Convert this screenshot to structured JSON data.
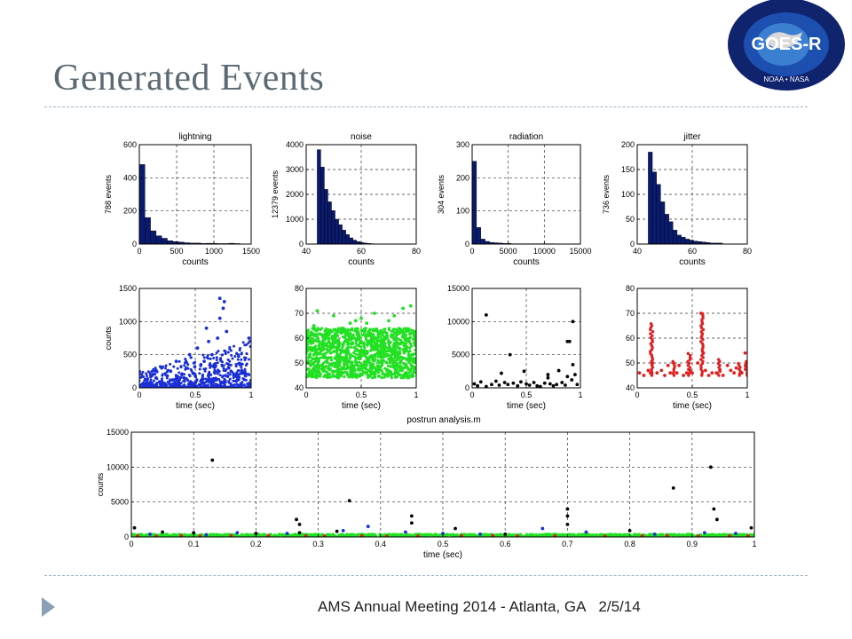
{
  "slide": {
    "title": "Generated Events",
    "footer_event": "AMS Annual Meeting 2014 - Atlanta, GA",
    "footer_date": "2/5/14",
    "figure_caption": "postrun analysis.m",
    "logo_text": "GOES-R",
    "logo_subtext": "NOAA • NASA"
  },
  "chart_data": [
    {
      "type": "bar",
      "title": "lightning",
      "xlabel": "counts",
      "ylabel": "788 events",
      "xlim": [
        0,
        1500
      ],
      "ylim": [
        0,
        600
      ],
      "xticks": [
        0,
        500,
        1000,
        1500
      ],
      "yticks": [
        0,
        200,
        400,
        600
      ],
      "bin_edges": [
        0,
        75,
        150,
        225,
        300,
        375,
        450,
        525,
        600,
        675,
        750,
        825,
        900,
        975,
        1050,
        1125,
        1200,
        1275,
        1350
      ],
      "values": [
        480,
        160,
        80,
        50,
        35,
        20,
        15,
        12,
        8,
        6,
        6,
        4,
        5,
        4,
        3,
        3,
        5,
        3
      ],
      "color": "#0a1a6e",
      "grid": true
    },
    {
      "type": "bar",
      "title": "noise",
      "xlabel": "counts",
      "ylabel": "12379 events",
      "xlim": [
        40,
        80
      ],
      "ylim": [
        0,
        4000
      ],
      "xticks": [
        40,
        60,
        80
      ],
      "yticks": [
        0,
        1000,
        2000,
        3000,
        4000
      ],
      "bin_edges": [
        44,
        45.3,
        46.6,
        47.9,
        49.2,
        50.5,
        51.8,
        53.1,
        54.4,
        55.7,
        57,
        58.3,
        59.6,
        60.9,
        62.2,
        63.5,
        64.8,
        66.1,
        67.4
      ],
      "values": [
        3800,
        3100,
        2200,
        1700,
        1350,
        1000,
        780,
        560,
        380,
        250,
        160,
        100,
        60,
        40,
        25,
        15,
        10,
        5
      ],
      "color": "#0a1a6e",
      "grid": true
    },
    {
      "type": "bar",
      "title": "radiation",
      "xlabel": "counts",
      "ylabel": "304 events",
      "xlim": [
        0,
        15000
      ],
      "ylim": [
        0,
        300
      ],
      "xticks": [
        0,
        5000,
        10000,
        15000
      ],
      "yticks": [
        0,
        100,
        200,
        300
      ],
      "bin_edges": [
        0,
        600,
        1200,
        1800,
        2400,
        3000,
        3600,
        4200,
        4800,
        5400,
        6000,
        6600,
        7200,
        7800,
        8400,
        9000,
        9600,
        10200,
        10800,
        11400
      ],
      "values": [
        250,
        50,
        15,
        8,
        5,
        4,
        3,
        2,
        2,
        1,
        1,
        1,
        1,
        1,
        1,
        1,
        1,
        1,
        1
      ],
      "color": "#0a1a6e",
      "grid": true
    },
    {
      "type": "bar",
      "title": "jitter",
      "xlabel": "counts",
      "ylabel": "736 events",
      "xlim": [
        40,
        80
      ],
      "ylim": [
        0,
        200
      ],
      "xticks": [
        40,
        60,
        80
      ],
      "yticks": [
        0,
        50,
        100,
        150,
        200
      ],
      "bin_edges": [
        44,
        45.5,
        47,
        48.5,
        50,
        51.5,
        53,
        54.5,
        56,
        57.5,
        59,
        60.5,
        62,
        63.5,
        65,
        66.5,
        68,
        69.5,
        71
      ],
      "values": [
        185,
        145,
        120,
        85,
        60,
        45,
        28,
        18,
        14,
        10,
        8,
        6,
        5,
        4,
        3,
        2,
        2,
        2
      ],
      "color": "#0a1a6e",
      "grid": true
    },
    {
      "type": "scatter",
      "xlabel": "time (sec)",
      "ylabel": "counts",
      "xlim": [
        0,
        1
      ],
      "ylim": [
        0,
        1500
      ],
      "xticks": [
        0,
        0.5,
        1
      ],
      "yticks": [
        0,
        500,
        1000,
        1500
      ],
      "x": [
        0.03,
        0.07,
        0.1,
        0.12,
        0.15,
        0.18,
        0.2,
        0.22,
        0.25,
        0.28,
        0.3,
        0.33,
        0.35,
        0.38,
        0.4,
        0.42,
        0.45,
        0.48,
        0.5,
        0.52,
        0.55,
        0.58,
        0.6,
        0.62,
        0.65,
        0.67,
        0.7,
        0.72,
        0.75,
        0.78,
        0.8,
        0.82,
        0.85,
        0.88,
        0.9,
        0.93,
        0.95,
        0.98,
        0.15,
        0.35,
        0.55,
        0.75,
        0.4,
        0.6,
        0.2,
        0.5,
        0.7,
        0.98,
        0.72,
        0.76
      ],
      "y": [
        60,
        120,
        80,
        200,
        150,
        90,
        300,
        60,
        180,
        250,
        120,
        400,
        90,
        200,
        150,
        300,
        500,
        220,
        180,
        600,
        350,
        400,
        900,
        700,
        500,
        350,
        750,
        1050,
        1200,
        850,
        300,
        250,
        200,
        150,
        350,
        220,
        180,
        750,
        50,
        40,
        100,
        80,
        30,
        20,
        60,
        70,
        40,
        50,
        1350,
        1300
      ],
      "n_points": "dense",
      "color": "#1a2fd6",
      "grid": true
    },
    {
      "type": "scatter",
      "xlabel": "time (sec)",
      "ylabel": "",
      "xlim": [
        0,
        1
      ],
      "ylim": [
        40,
        80
      ],
      "xticks": [
        0,
        0.5,
        1
      ],
      "yticks": [
        40,
        50,
        60,
        70,
        80
      ],
      "x": [
        0.1,
        0.25,
        0.4,
        0.5,
        0.62,
        0.75,
        0.88,
        0.95,
        0.07,
        0.33,
        0.55,
        0.8,
        0.98,
        0.45,
        0.68
      ],
      "y": [
        71,
        69,
        66,
        68,
        70,
        67,
        72,
        73,
        65,
        64,
        66,
        69,
        62,
        67,
        63
      ],
      "band": {
        "min": 44,
        "max": 64
      },
      "n_points": "dense",
      "color": "#22e022",
      "grid": true
    },
    {
      "type": "scatter",
      "xlabel": "time (sec)",
      "ylabel": "",
      "xlim": [
        0,
        1
      ],
      "ylim": [
        0,
        15000
      ],
      "xticks": [
        0,
        0.5,
        1
      ],
      "yticks": [
        0,
        5000,
        10000,
        15000
      ],
      "x": [
        0.02,
        0.05,
        0.08,
        0.13,
        0.18,
        0.22,
        0.25,
        0.27,
        0.3,
        0.33,
        0.35,
        0.38,
        0.42,
        0.45,
        0.48,
        0.5,
        0.53,
        0.57,
        0.6,
        0.63,
        0.67,
        0.7,
        0.72,
        0.75,
        0.78,
        0.8,
        0.83,
        0.86,
        0.88,
        0.9,
        0.92,
        0.93,
        0.95,
        0.97,
        0.13,
        0.93,
        0.88,
        0.7
      ],
      "y": [
        600,
        300,
        900,
        200,
        500,
        1000,
        400,
        2200,
        800,
        500,
        5000,
        700,
        300,
        900,
        2500,
        600,
        400,
        800,
        300,
        200,
        700,
        2000,
        600,
        300,
        500,
        2600,
        800,
        400,
        1700,
        7000,
        1200,
        3500,
        2000,
        500,
        11000,
        10000,
        7000,
        1500
      ],
      "color": "#000000",
      "grid": true
    },
    {
      "type": "scatter",
      "xlabel": "time (sec)",
      "ylabel": "",
      "xlim": [
        0,
        1
      ],
      "ylim": [
        40,
        80
      ],
      "xticks": [
        0,
        0.5,
        1
      ],
      "yticks": [
        40,
        50,
        60,
        70,
        80
      ],
      "x": [
        0.02,
        0.06,
        0.1,
        0.12,
        0.14,
        0.18,
        0.22,
        0.25,
        0.28,
        0.3,
        0.33,
        0.36,
        0.38,
        0.42,
        0.45,
        0.48,
        0.5,
        0.55,
        0.58,
        0.6,
        0.62,
        0.65,
        0.68,
        0.72,
        0.75,
        0.78,
        0.82,
        0.85,
        0.88,
        0.9,
        0.95,
        0.98
      ],
      "y": [
        46,
        45,
        47,
        46,
        50,
        46,
        47,
        45,
        49,
        46,
        50,
        46,
        49,
        45,
        46,
        47,
        46,
        50,
        70,
        54,
        47,
        45,
        46,
        46,
        47,
        45,
        49,
        47,
        46,
        48,
        46,
        54
      ],
      "vertical_clusters": [
        {
          "x": 0.13,
          "ymax": 66
        },
        {
          "x": 0.33,
          "ymax": 51
        },
        {
          "x": 0.47,
          "ymax": 54
        },
        {
          "x": 0.59,
          "ymax": 70
        },
        {
          "x": 0.74,
          "ymax": 52
        },
        {
          "x": 0.93,
          "ymax": 50
        },
        {
          "x": 0.99,
          "ymax": 51
        }
      ],
      "color": "#e02020",
      "grid": true
    },
    {
      "type": "scatter",
      "xlabel": "time (sec)",
      "ylabel": "counts",
      "xlim": [
        0,
        1
      ],
      "ylim": [
        0,
        15000
      ],
      "xticks": [
        0,
        0.1,
        0.2,
        0.3,
        0.4,
        0.5,
        0.6,
        0.7,
        0.8,
        0.9,
        1
      ],
      "yticks": [
        0,
        5000,
        10000,
        15000
      ],
      "series": [
        {
          "color": "#000000",
          "x": [
            0.005,
            0.05,
            0.13,
            0.265,
            0.27,
            0.27,
            0.35,
            0.45,
            0.45,
            0.52,
            0.7,
            0.7,
            0.7,
            0.87,
            0.93,
            0.935,
            0.94,
            0.995,
            0.1,
            0.2,
            0.33,
            0.6,
            0.8
          ],
          "y": [
            1300,
            700,
            11000,
            2500,
            1800,
            600,
            5200,
            3000,
            2000,
            1200,
            4000,
            3000,
            1800,
            7000,
            10000,
            4000,
            2500,
            1300,
            600,
            500,
            800,
            400,
            900
          ]
        },
        {
          "color": "#1a2fd6",
          "x": [
            0.03,
            0.12,
            0.17,
            0.25,
            0.34,
            0.38,
            0.44,
            0.5,
            0.56,
            0.66,
            0.73,
            0.84,
            0.92,
            0.97
          ],
          "y": [
            400,
            300,
            600,
            500,
            900,
            1500,
            700,
            500,
            400,
            1200,
            700,
            400,
            600,
            500
          ]
        },
        {
          "color": "#e02020",
          "x": [
            0.01,
            0.04,
            0.08,
            0.11,
            0.16,
            0.22,
            0.28,
            0.31,
            0.37,
            0.41,
            0.46,
            0.53,
            0.58,
            0.62,
            0.68,
            0.76,
            0.82,
            0.86,
            0.91,
            0.96,
            0.99
          ],
          "y": [
            150,
            100,
            200,
            120,
            180,
            200,
            150,
            120,
            160,
            100,
            130,
            170,
            200,
            120,
            140,
            110,
            150,
            180,
            130,
            160,
            140
          ]
        }
      ],
      "band": {
        "color": "#22e022",
        "min": 0,
        "max": 400
      },
      "grid": true
    }
  ]
}
